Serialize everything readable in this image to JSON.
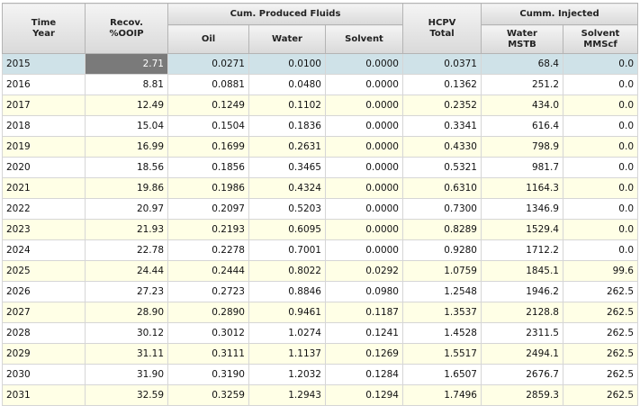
{
  "header": {
    "time_year": "Time\nYear",
    "recov": "Recov.\n%OOIP",
    "cum_produced": "Cum. Produced Fluids",
    "oil": "Oil",
    "water": "Water",
    "solvent": "Solvent",
    "hcpv_total": "HCPV\nTotal",
    "cumm_injected": "Cumm. Injected",
    "water_mstb": "Water\nMSTB",
    "solvent_mmscf": "Solvent\nMMScf"
  },
  "rows": [
    {
      "year": "2015",
      "recov": "2.71",
      "oil": "0.0271",
      "water": "0.0100",
      "solvent": "0.0000",
      "hcpv": "0.0371",
      "inj_water": "68.4",
      "inj_solvent": "0.0"
    },
    {
      "year": "2016",
      "recov": "8.81",
      "oil": "0.0881",
      "water": "0.0480",
      "solvent": "0.0000",
      "hcpv": "0.1362",
      "inj_water": "251.2",
      "inj_solvent": "0.0"
    },
    {
      "year": "2017",
      "recov": "12.49",
      "oil": "0.1249",
      "water": "0.1102",
      "solvent": "0.0000",
      "hcpv": "0.2352",
      "inj_water": "434.0",
      "inj_solvent": "0.0"
    },
    {
      "year": "2018",
      "recov": "15.04",
      "oil": "0.1504",
      "water": "0.1836",
      "solvent": "0.0000",
      "hcpv": "0.3341",
      "inj_water": "616.4",
      "inj_solvent": "0.0"
    },
    {
      "year": "2019",
      "recov": "16.99",
      "oil": "0.1699",
      "water": "0.2631",
      "solvent": "0.0000",
      "hcpv": "0.4330",
      "inj_water": "798.9",
      "inj_solvent": "0.0"
    },
    {
      "year": "2020",
      "recov": "18.56",
      "oil": "0.1856",
      "water": "0.3465",
      "solvent": "0.0000",
      "hcpv": "0.5321",
      "inj_water": "981.7",
      "inj_solvent": "0.0"
    },
    {
      "year": "2021",
      "recov": "19.86",
      "oil": "0.1986",
      "water": "0.4324",
      "solvent": "0.0000",
      "hcpv": "0.6310",
      "inj_water": "1164.3",
      "inj_solvent": "0.0"
    },
    {
      "year": "2022",
      "recov": "20.97",
      "oil": "0.2097",
      "water": "0.5203",
      "solvent": "0.0000",
      "hcpv": "0.7300",
      "inj_water": "1346.9",
      "inj_solvent": "0.0"
    },
    {
      "year": "2023",
      "recov": "21.93",
      "oil": "0.2193",
      "water": "0.6095",
      "solvent": "0.0000",
      "hcpv": "0.8289",
      "inj_water": "1529.4",
      "inj_solvent": "0.0"
    },
    {
      "year": "2024",
      "recov": "22.78",
      "oil": "0.2278",
      "water": "0.7001",
      "solvent": "0.0000",
      "hcpv": "0.9280",
      "inj_water": "1712.2",
      "inj_solvent": "0.0"
    },
    {
      "year": "2025",
      "recov": "24.44",
      "oil": "0.2444",
      "water": "0.8022",
      "solvent": "0.0292",
      "hcpv": "1.0759",
      "inj_water": "1845.1",
      "inj_solvent": "99.6"
    },
    {
      "year": "2026",
      "recov": "27.23",
      "oil": "0.2723",
      "water": "0.8846",
      "solvent": "0.0980",
      "hcpv": "1.2548",
      "inj_water": "1946.2",
      "inj_solvent": "262.5"
    },
    {
      "year": "2027",
      "recov": "28.90",
      "oil": "0.2890",
      "water": "0.9461",
      "solvent": "0.1187",
      "hcpv": "1.3537",
      "inj_water": "2128.8",
      "inj_solvent": "262.5"
    },
    {
      "year": "2028",
      "recov": "30.12",
      "oil": "0.3012",
      "water": "1.0274",
      "solvent": "0.1241",
      "hcpv": "1.4528",
      "inj_water": "2311.5",
      "inj_solvent": "262.5"
    },
    {
      "year": "2029",
      "recov": "31.11",
      "oil": "0.3111",
      "water": "1.1137",
      "solvent": "0.1269",
      "hcpv": "1.5517",
      "inj_water": "2494.1",
      "inj_solvent": "262.5"
    },
    {
      "year": "2030",
      "recov": "31.90",
      "oil": "0.3190",
      "water": "1.2032",
      "solvent": "0.1284",
      "hcpv": "1.6507",
      "inj_water": "2676.7",
      "inj_solvent": "262.5"
    },
    {
      "year": "2031",
      "recov": "32.59",
      "oil": "0.3259",
      "water": "1.2943",
      "solvent": "0.1294",
      "hcpv": "1.7496",
      "inj_water": "2859.3",
      "inj_solvent": "262.5"
    }
  ]
}
